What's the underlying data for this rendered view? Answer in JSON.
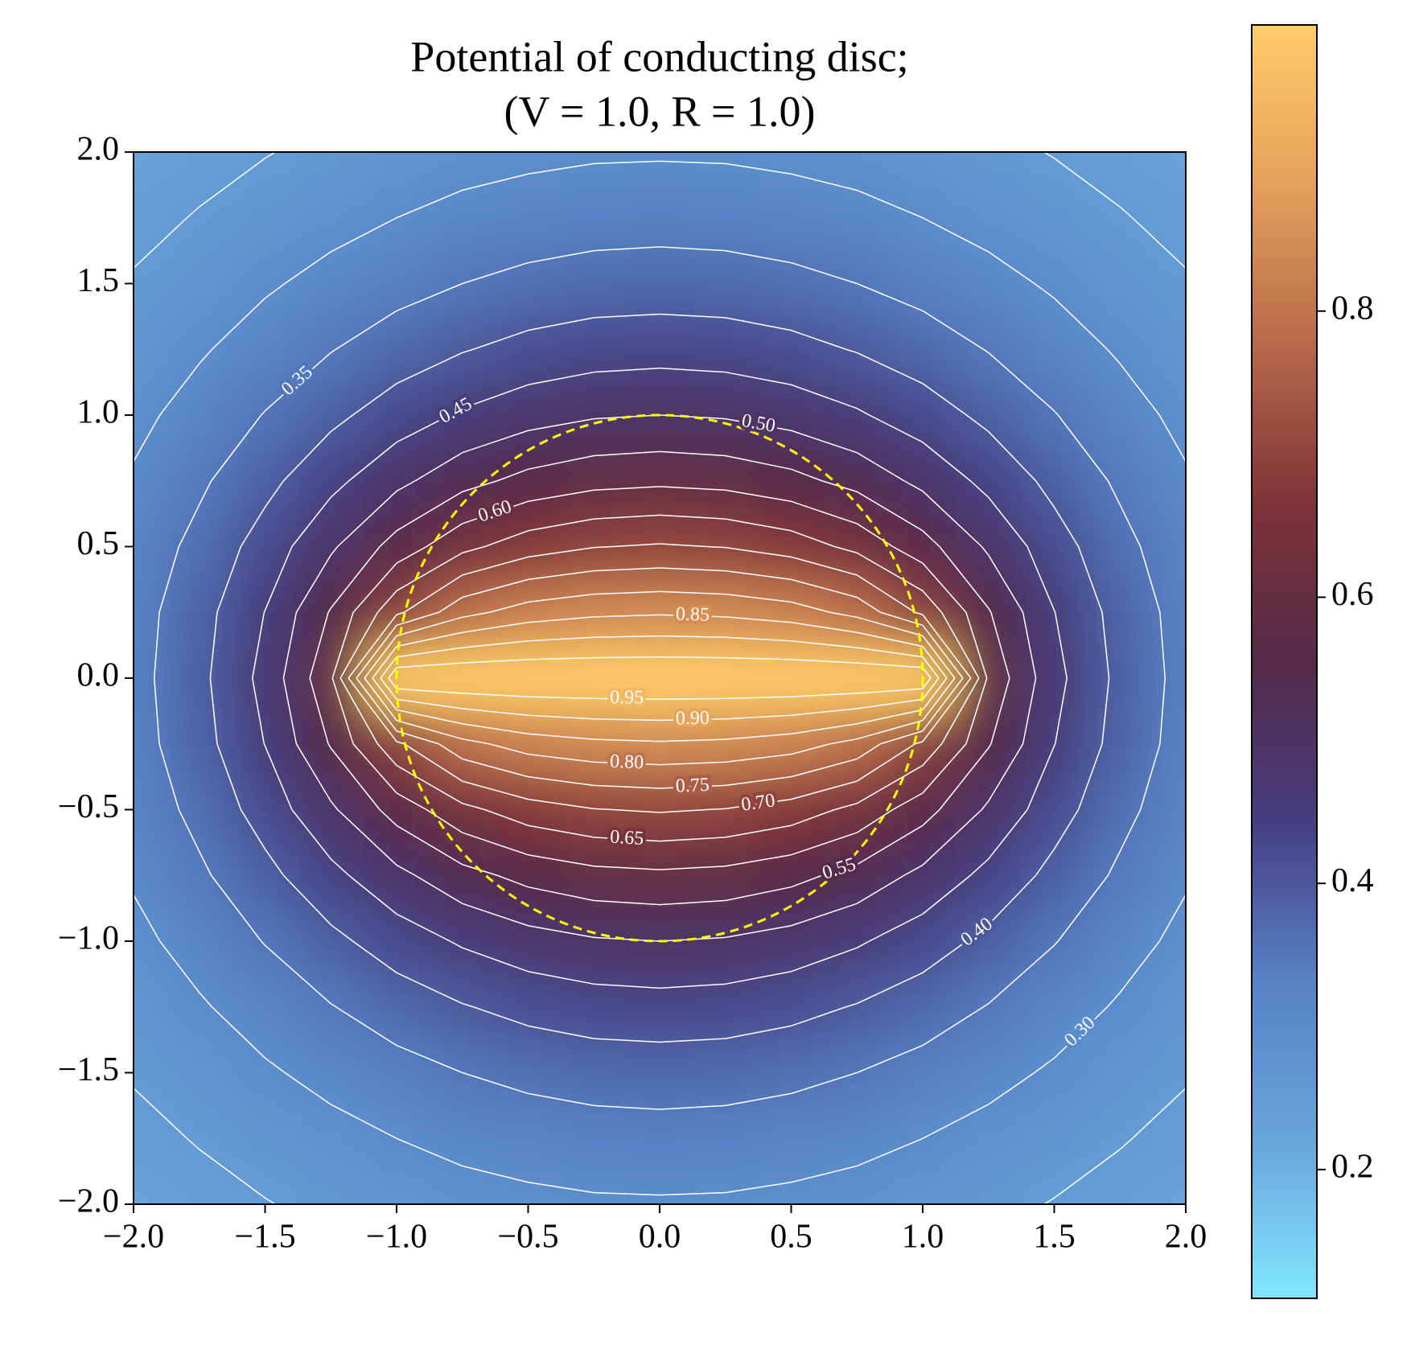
{
  "chart_data": {
    "type": "contour",
    "title": [
      "Potential of conducting disc;",
      "(V = 1.0, R = 1.0)"
    ],
    "x": [
      -2,
      -1.75,
      -1.5,
      -1.25,
      -1,
      -0.75,
      -0.5,
      -0.25,
      0,
      0.25,
      0.5,
      0.75,
      1,
      1.25,
      1.5,
      1.75,
      2
    ],
    "y": [
      -2,
      -1.75,
      -1.5,
      -1.25,
      -1,
      -0.75,
      -0.5,
      -0.25,
      0,
      0.25,
      0.5,
      0.75,
      1,
      1.25,
      1.5,
      1.75,
      2
    ],
    "z": [
      [
        0.223,
        0.235,
        0.248,
        0.261,
        0.272,
        0.282,
        0.289,
        0.294,
        0.295,
        0.294,
        0.289,
        0.282,
        0.272,
        0.261,
        0.248,
        0.235,
        0.223
      ],
      [
        0.237,
        0.253,
        0.269,
        0.285,
        0.3,
        0.313,
        0.322,
        0.328,
        0.331,
        0.328,
        0.322,
        0.313,
        0.3,
        0.285,
        0.269,
        0.253,
        0.237
      ],
      [
        0.254,
        0.273,
        0.294,
        0.314,
        0.333,
        0.35,
        0.363,
        0.372,
        0.374,
        0.372,
        0.363,
        0.35,
        0.333,
        0.314,
        0.294,
        0.273,
        0.254
      ],
      [
        0.271,
        0.295,
        0.321,
        0.348,
        0.374,
        0.397,
        0.415,
        0.426,
        0.43,
        0.426,
        0.415,
        0.397,
        0.374,
        0.348,
        0.321,
        0.295,
        0.271
      ],
      [
        0.288,
        0.318,
        0.352,
        0.388,
        0.424,
        0.456,
        0.48,
        0.495,
        0.5,
        0.495,
        0.48,
        0.456,
        0.424,
        0.388,
        0.352,
        0.318,
        0.288
      ],
      [
        0.305,
        0.342,
        0.386,
        0.436,
        0.487,
        0.533,
        0.565,
        0.584,
        0.59,
        0.584,
        0.565,
        0.533,
        0.487,
        0.436,
        0.386,
        0.342,
        0.305
      ],
      [
        0.319,
        0.364,
        0.421,
        0.492,
        0.57,
        0.636,
        0.677,
        0.698,
        0.705,
        0.698,
        0.677,
        0.636,
        0.57,
        0.492,
        0.421,
        0.364,
        0.319
      ],
      [
        0.33,
        0.381,
        0.451,
        0.554,
        0.689,
        0.784,
        0.823,
        0.839,
        0.844,
        0.839,
        0.823,
        0.784,
        0.689,
        0.554,
        0.451,
        0.381,
        0.33
      ],
      [
        0.333,
        0.387,
        0.465,
        0.59,
        1,
        1,
        1,
        1,
        1,
        1,
        1,
        1,
        1,
        0.59,
        0.465,
        0.387,
        0.333
      ],
      [
        0.33,
        0.381,
        0.451,
        0.554,
        0.689,
        0.784,
        0.823,
        0.839,
        0.844,
        0.839,
        0.823,
        0.784,
        0.689,
        0.554,
        0.451,
        0.381,
        0.33
      ],
      [
        0.319,
        0.364,
        0.421,
        0.492,
        0.57,
        0.636,
        0.677,
        0.698,
        0.705,
        0.698,
        0.677,
        0.636,
        0.57,
        0.492,
        0.421,
        0.364,
        0.319
      ],
      [
        0.305,
        0.342,
        0.386,
        0.436,
        0.487,
        0.533,
        0.565,
        0.584,
        0.59,
        0.584,
        0.565,
        0.533,
        0.487,
        0.436,
        0.386,
        0.342,
        0.305
      ],
      [
        0.288,
        0.318,
        0.352,
        0.388,
        0.424,
        0.456,
        0.48,
        0.495,
        0.5,
        0.495,
        0.48,
        0.456,
        0.424,
        0.388,
        0.352,
        0.318,
        0.288
      ],
      [
        0.271,
        0.295,
        0.321,
        0.348,
        0.374,
        0.397,
        0.415,
        0.426,
        0.43,
        0.426,
        0.415,
        0.397,
        0.374,
        0.348,
        0.321,
        0.295,
        0.271
      ],
      [
        0.254,
        0.273,
        0.294,
        0.314,
        0.333,
        0.35,
        0.363,
        0.372,
        0.374,
        0.372,
        0.363,
        0.35,
        0.333,
        0.314,
        0.294,
        0.273,
        0.254
      ],
      [
        0.237,
        0.253,
        0.269,
        0.285,
        0.3,
        0.313,
        0.322,
        0.328,
        0.331,
        0.328,
        0.322,
        0.313,
        0.3,
        0.285,
        0.269,
        0.253,
        0.237
      ],
      [
        0.223,
        0.235,
        0.248,
        0.261,
        0.272,
        0.282,
        0.289,
        0.294,
        0.295,
        0.294,
        0.289,
        0.282,
        0.272,
        0.261,
        0.248,
        0.235,
        0.223
      ]
    ],
    "xlim": [
      -2,
      2
    ],
    "ylim": [
      -2,
      2
    ],
    "xticks": [
      {
        "value": -2,
        "label": "−2.0"
      },
      {
        "value": -1.5,
        "label": "−1.5"
      },
      {
        "value": -1,
        "label": "−1.0"
      },
      {
        "value": -0.5,
        "label": "−0.5"
      },
      {
        "value": 0,
        "label": "0.0"
      },
      {
        "value": 0.5,
        "label": "0.5"
      },
      {
        "value": 1,
        "label": "1.0"
      },
      {
        "value": 1.5,
        "label": "1.5"
      },
      {
        "value": 2,
        "label": "2.0"
      }
    ],
    "yticks": [
      {
        "value": -2,
        "label": "−2.0"
      },
      {
        "value": -1.5,
        "label": "−1.5"
      },
      {
        "value": -1,
        "label": "−1.0"
      },
      {
        "value": -0.5,
        "label": "−0.5"
      },
      {
        "value": 0,
        "label": "0.0"
      },
      {
        "value": 0.5,
        "label": "0.5"
      },
      {
        "value": 1,
        "label": "1.0"
      },
      {
        "value": 1.5,
        "label": "1.5"
      },
      {
        "value": 2,
        "label": "2.0"
      }
    ],
    "clim": [
      0.11,
      1.0
    ],
    "cticks": [
      0.2,
      0.4,
      0.6,
      0.8
    ],
    "colormap": [
      "#82e6ff",
      "#68a4d8",
      "#5682c6",
      "#463e80",
      "#552a48",
      "#7e3438",
      "#b8694a",
      "#e4a05a",
      "#ffcd68"
    ],
    "contour_color": "#ffffff",
    "contour_levels": [
      0.25,
      {
        "value": 0.3,
        "label": "0.30"
      },
      {
        "value": 0.35,
        "label": "0.35"
      },
      {
        "value": 0.4,
        "label": "0.40"
      },
      {
        "value": 0.45,
        "label": "0.45"
      },
      {
        "value": 0.5,
        "label": "0.50"
      },
      {
        "value": 0.55,
        "label": "0.55"
      },
      {
        "value": 0.6,
        "label": "0.60"
      },
      {
        "value": 0.65,
        "label": "0.65"
      },
      {
        "value": 0.7,
        "label": "0.70"
      },
      {
        "value": 0.75,
        "label": "0.75"
      },
      {
        "value": 0.8,
        "label": "0.80"
      },
      {
        "value": 0.85,
        "label": "0.85"
      },
      {
        "value": 0.9,
        "label": "0.90"
      },
      {
        "value": 0.95,
        "label": "0.95"
      }
    ],
    "circle": {
      "radius": 1,
      "color": "#ffff00"
    }
  }
}
